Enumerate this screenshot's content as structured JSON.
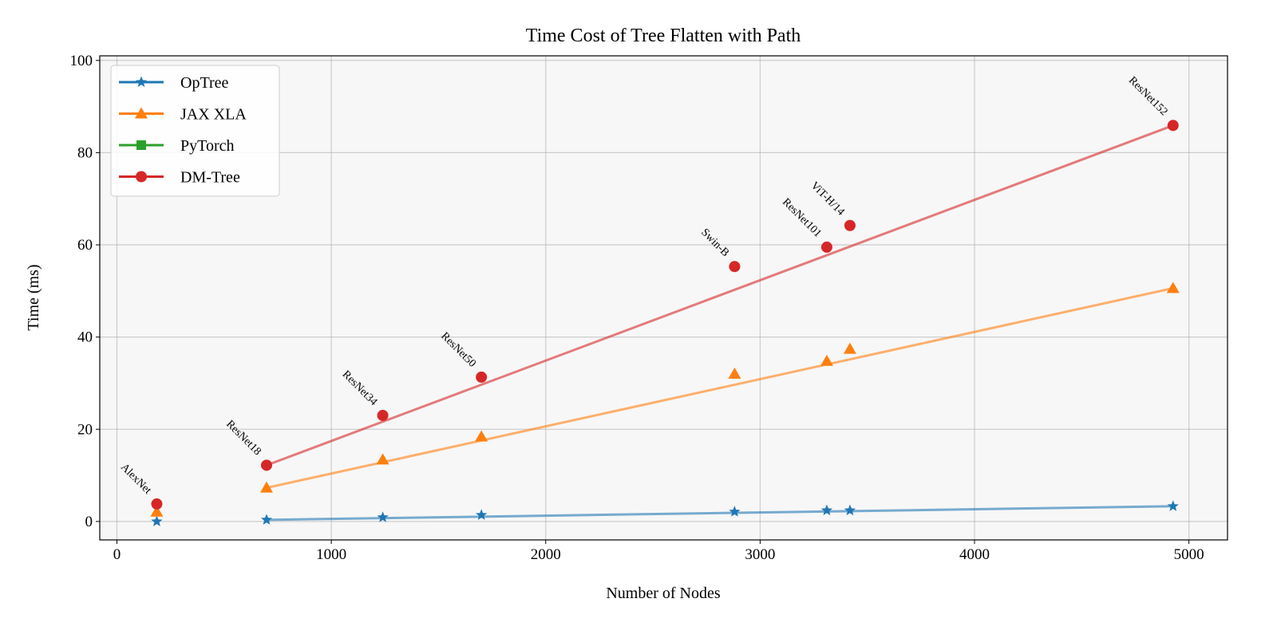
{
  "chart_data": {
    "type": "scatter",
    "title": "Time Cost of Tree Flatten with Path",
    "xlabel": "Number of Nodes",
    "ylabel": "Time (ms)",
    "xlim": [
      -80,
      5180
    ],
    "ylim": [
      -4,
      101
    ],
    "xticks": [
      0,
      1000,
      2000,
      3000,
      4000,
      5000
    ],
    "yticks": [
      0,
      20,
      40,
      60,
      80,
      100
    ],
    "grid": true,
    "legend_position": "top-left",
    "models": [
      "AlexNet",
      "ResNet18",
      "ResNet34",
      "ResNet50",
      "Swin-B",
      "ResNet101",
      "ViT-H/14",
      "ResNet152"
    ],
    "x": [
      186,
      698,
      1240,
      1700,
      2881,
      3311,
      3419,
      4926
    ],
    "series": [
      {
        "name": "OpTree",
        "color": "#1f77b4",
        "marker": "star",
        "values": [
          0.0,
          0.35,
          0.9,
          1.4,
          2.1,
          2.4,
          2.4,
          3.3
        ],
        "fit": {
          "x": [
            698,
            4926
          ],
          "y": [
            0.35,
            3.3
          ]
        }
      },
      {
        "name": "JAX XLA",
        "color": "#ff7f0e",
        "marker": "triangle",
        "values": [
          2.1,
          7.3,
          13.4,
          18.4,
          32.0,
          34.8,
          37.4,
          50.6
        ],
        "fit": {
          "x": [
            698,
            4926
          ],
          "y": [
            7.3,
            50.6
          ]
        }
      },
      {
        "name": "PyTorch",
        "color": "#2ca02c",
        "marker": "square",
        "values": [],
        "fit": null
      },
      {
        "name": "DM-Tree",
        "color": "#d62728",
        "marker": "circle",
        "values": [
          3.8,
          12.2,
          23.0,
          31.3,
          55.3,
          59.5,
          64.2,
          85.9
        ],
        "fit": {
          "x": [
            698,
            4926
          ],
          "y": [
            12.2,
            85.9
          ]
        }
      }
    ],
    "label_series": "DM-Tree"
  }
}
